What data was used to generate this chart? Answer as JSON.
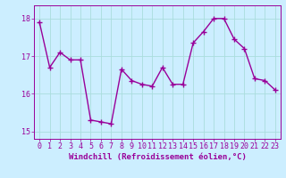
{
  "x": [
    0,
    1,
    2,
    3,
    4,
    5,
    6,
    7,
    8,
    9,
    10,
    11,
    12,
    13,
    14,
    15,
    16,
    17,
    18,
    19,
    20,
    21,
    22,
    23
  ],
  "y": [
    17.9,
    16.7,
    17.1,
    16.9,
    16.9,
    15.3,
    15.25,
    15.2,
    16.65,
    16.35,
    16.25,
    16.2,
    16.7,
    16.25,
    16.25,
    17.35,
    17.65,
    18.0,
    18.0,
    17.45,
    17.2,
    16.4,
    16.35,
    16.1
  ],
  "line_color": "#990099",
  "marker": "+",
  "marker_size": 4,
  "linewidth": 1.0,
  "xlabel": "Windchill (Refroidissement éolien,°C)",
  "xlabel_fontsize": 6.5,
  "xtick_labels": [
    "0",
    "1",
    "2",
    "3",
    "4",
    "5",
    "6",
    "7",
    "8",
    "9",
    "10",
    "11",
    "12",
    "13",
    "14",
    "15",
    "16",
    "17",
    "18",
    "19",
    "20",
    "21",
    "22",
    "23"
  ],
  "yticks": [
    15,
    16,
    17,
    18
  ],
  "ylim": [
    14.8,
    18.35
  ],
  "xlim": [
    -0.5,
    23.5
  ],
  "background_color": "#cceeff",
  "grid_color": "#aadddd",
  "tick_fontsize": 6.0
}
